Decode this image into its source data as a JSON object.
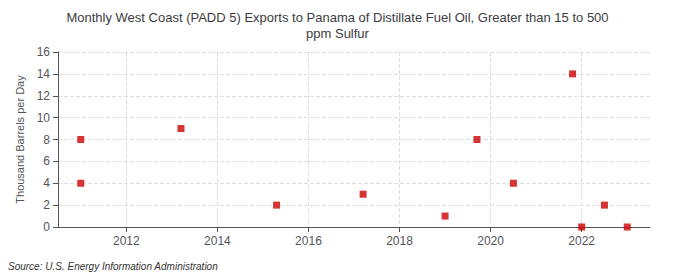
{
  "chart_data": {
    "type": "scatter",
    "title": "Monthly West Coast (PADD 5) Exports to Panama of Distillate Fuel Oil, Greater than 15 to 500\nppm Sulfur",
    "ylabel": "Thousand Barrels per Day",
    "annotation": "Source: U.S. Energy Information Administration",
    "x": [
      2011.0,
      2011.0,
      2013.2,
      2015.3,
      2017.2,
      2019.0,
      2019.7,
      2020.5,
      2021.8,
      2022.0,
      2022.5,
      2023.0
    ],
    "values": [
      8,
      4,
      9,
      2,
      3,
      1,
      8,
      4,
      14,
      0,
      2,
      0
    ],
    "color": "#cc0000",
    "marker": "square",
    "xlim": [
      2010.5,
      2023.5
    ],
    "ylim": [
      0,
      16
    ],
    "xticks": [
      2012,
      2014,
      2016,
      2018,
      2020,
      2022
    ],
    "yticks": [
      0,
      2,
      4,
      6,
      8,
      10,
      12,
      14,
      16
    ],
    "grid": true
  }
}
